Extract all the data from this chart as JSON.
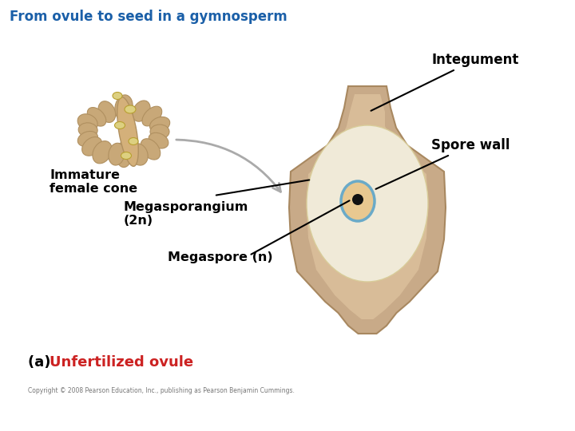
{
  "title": "From ovule to seed in a gymnosperm",
  "title_color": "#1a5fa8",
  "title_fontsize": 12,
  "label_integument": "Integument",
  "label_spore_wall": "Spore wall",
  "label_immature": "Immature\nfemale cone",
  "label_megasporangium": "Megasporangium\n(2",
  "label_megaspore": "Megaspore (",
  "label_a": "(a) ",
  "label_unfertilized": "Unfertilized ovule",
  "copyright": "Copyright © 2008 Pearson Education, Inc., publishing as Pearson Benjamin Cummings.",
  "bg_color": "#ffffff",
  "integument_fill": "#c8aa88",
  "integument_edge": "#a88860",
  "integument_inner_fill": "#d8bc98",
  "megasporangium_color": "#f0ead8",
  "megasporangium_edge": "#d8cc99",
  "spore_wall_color": "#6aaac8",
  "spore_wall_inner": "#e8c890",
  "megaspore_dot_color": "#111111",
  "arrow_gray": "#aaaaaa",
  "cone_body_fill": "#c8a070",
  "cone_lobe_fill": "#c8a878",
  "cone_lobe_edge": "#b09060",
  "seed_fill": "#ddd080",
  "seed_edge": "#b8a030",
  "cone_center_fill": "#d4aa80"
}
